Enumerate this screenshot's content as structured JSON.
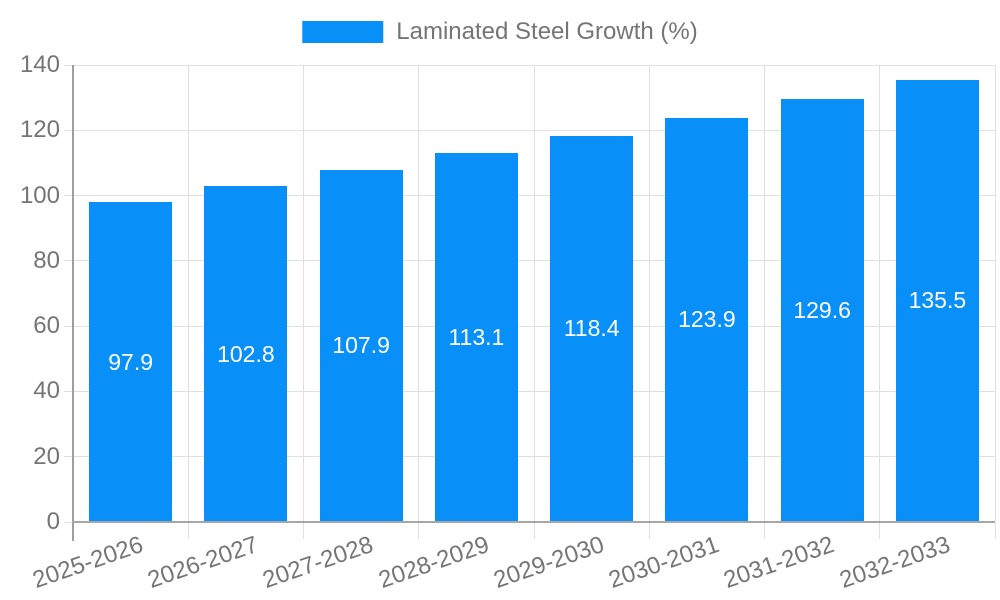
{
  "legend": {
    "label": "Laminated Steel Growth (%)"
  },
  "chart_data": {
    "type": "bar",
    "title": "",
    "series_name": "Laminated Steel Growth (%)",
    "categories": [
      "2025-2026",
      "2026-2027",
      "2027-2028",
      "2028-2029",
      "2029-2030",
      "2030-2031",
      "2031-2032",
      "2032-2033"
    ],
    "values": [
      97.9,
      102.8,
      107.9,
      113.1,
      118.4,
      123.9,
      129.6,
      135.5
    ],
    "value_labels": [
      "97.9",
      "102.8",
      "107.9",
      "113.1",
      "118.4",
      "123.9",
      "129.6",
      "135.5"
    ],
    "xlabel": "",
    "ylabel": "",
    "ylim": [
      0,
      140
    ],
    "yticks": [
      0,
      20,
      40,
      60,
      80,
      100,
      120,
      140
    ],
    "grid": true,
    "legend_position": "top",
    "bar_color": "#0890f8",
    "value_label_color": "#ffffff",
    "axis_text_color": "#757575",
    "gridline_color": "#e0e0e0",
    "axis_line_color": "#9e9e9e"
  }
}
